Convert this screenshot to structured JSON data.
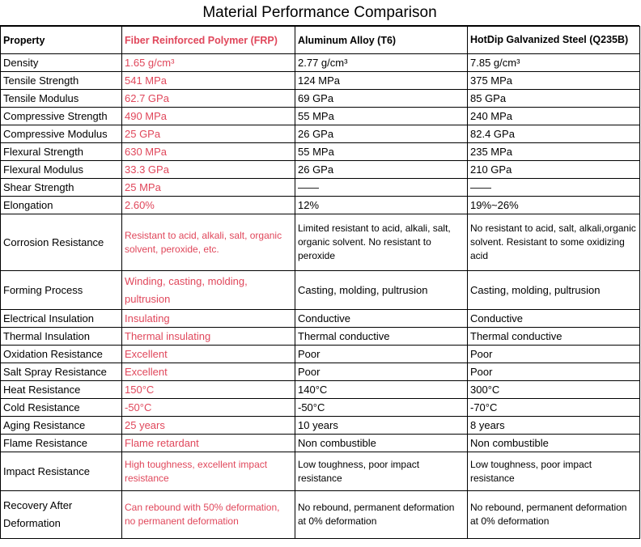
{
  "title": "Material Performance Comparison",
  "colors": {
    "frp_text": "#e0475b",
    "border": "#000000"
  },
  "headers": {
    "property": "Property",
    "frp": "Fiber Reinforced Polymer (FRP)",
    "aluminum": "Aluminum Alloy (T6)",
    "steel": "HotDip Galvanized Steel (Q235B)"
  },
  "rows": [
    {
      "property": "Density",
      "frp": "1.65 g/cm³",
      "aluminum": "2.77 g/cm³",
      "steel": "7.85 g/cm³"
    },
    {
      "property": "Tensile Strength",
      "frp": "541 MPa",
      "aluminum": "124 MPa",
      "steel": "375 MPa"
    },
    {
      "property": "Tensile Modulus",
      "frp": "62.7 GPa",
      "aluminum": "69 GPa",
      "steel": "85 GPa"
    },
    {
      "property": "Compressive Strength",
      "frp": "490 MPa",
      "aluminum": "55 MPa",
      "steel": "240 MPa"
    },
    {
      "property": "Compressive Modulus",
      "frp": "25 GPa",
      "aluminum": "26 GPa",
      "steel": "82.4 GPa"
    },
    {
      "property": "Flexural Strength",
      "frp": "630 MPa",
      "aluminum": "55 MPa",
      "steel": "235 MPa"
    },
    {
      "property": "Flexural Modulus",
      "frp": "33.3 GPa",
      "aluminum": "26 GPa",
      "steel": "210 GPa"
    },
    {
      "property": "Shear Strength",
      "frp": "25 MPa",
      "aluminum": "——",
      "steel": "——"
    },
    {
      "property": "Elongation",
      "frp": "2.60%",
      "aluminum": "12%",
      "steel": "19%~26%"
    },
    {
      "property": "Corrosion Resistance",
      "frp": "Resistant to acid, alkali, salt, organic solvent, peroxide, etc.",
      "aluminum": "Limited resistant to acid, alkali, salt, organic solvent. No resistant to peroxide",
      "steel": "No resistant to acid, salt, alkali,organic solvent. Resistant to some oxidizing acid"
    },
    {
      "property": "Forming Process",
      "frp": "Winding, casting, molding, pultrusion",
      "aluminum": "Casting, molding, pultrusion",
      "steel": "Casting, molding, pultrusion"
    },
    {
      "property": "Electrical Insulation",
      "frp": "Insulating",
      "aluminum": "Conductive",
      "steel": "Conductive"
    },
    {
      "property": "Thermal Insulation",
      "frp": "Thermal insulating",
      "aluminum": "Thermal conductive",
      "steel": "Thermal conductive"
    },
    {
      "property": "Oxidation Resistance",
      "frp": "Excellent",
      "aluminum": "Poor",
      "steel": "Poor"
    },
    {
      "property": "Salt Spray Resistance",
      "frp": "Excellent",
      "aluminum": "Poor",
      "steel": "Poor"
    },
    {
      "property": "Heat Resistance",
      "frp": "150°C",
      "aluminum": "140°C",
      "steel": "300°C"
    },
    {
      "property": "Cold Resistance",
      "frp": "-50°C",
      "aluminum": "-50°C",
      "steel": "-70°C"
    },
    {
      "property": "Aging Resistance",
      "frp": "25 years",
      "aluminum": "10 years",
      "steel": "8 years"
    },
    {
      "property": "Flame Resistance",
      "frp": "Flame retardant",
      "aluminum": "Non combustible",
      "steel": "Non combustible"
    },
    {
      "property": "Impact Resistance",
      "frp": "High toughness, excellent impact resistance",
      "aluminum": "Low toughness, poor impact resistance",
      "steel": "Low toughness, poor impact resistance"
    },
    {
      "property": "Recovery After Deformation",
      "frp": "Can rebound with 50% deformation, no permanent deformation",
      "aluminum": "No rebound, permanent deformation at 0% deformation",
      "steel": "No rebound, permanent deformation at 0% deformation"
    }
  ]
}
